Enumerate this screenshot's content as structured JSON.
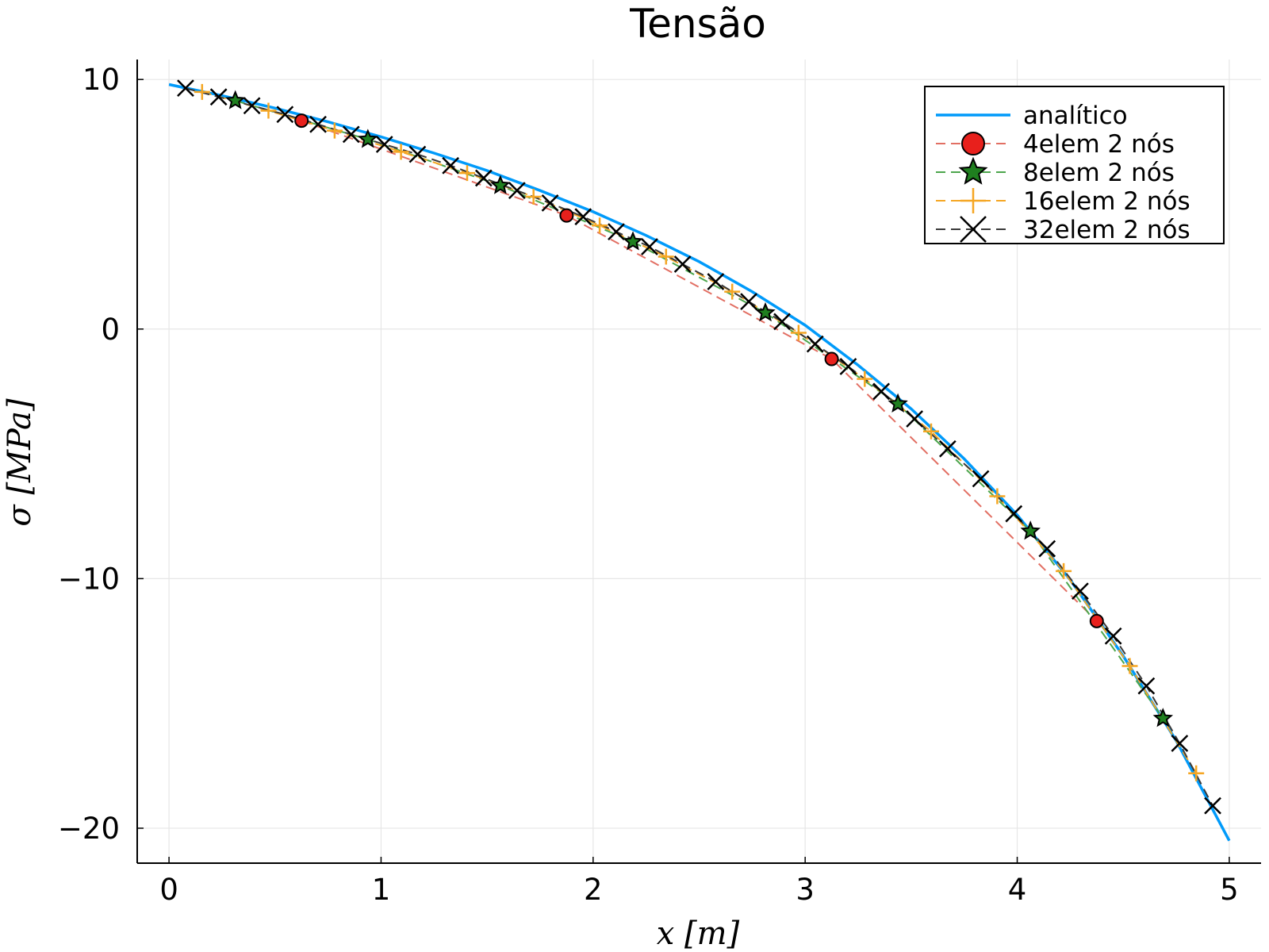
{
  "chart_data": {
    "type": "line",
    "title": "Tensão",
    "xlabel": "x [m]",
    "ylabel": "σ [MPa]",
    "xlim": [
      -0.15,
      5.15
    ],
    "ylim": [
      -21.4,
      10.8
    ],
    "xticks": [
      0,
      1,
      2,
      3,
      4,
      5
    ],
    "xtick_labels": [
      "0",
      "1",
      "2",
      "3",
      "4",
      "5"
    ],
    "yticks": [
      -20,
      -10,
      0,
      10
    ],
    "ytick_labels": [
      "−20",
      "−10",
      "0",
      "10"
    ],
    "grid": true,
    "legend_position": "top-right",
    "series": [
      {
        "name": "analítico",
        "style": "solid",
        "marker": "none",
        "color": "#009AFA",
        "x": [
          0,
          0.25,
          0.5,
          0.75,
          1,
          1.25,
          1.5,
          1.75,
          2,
          2.25,
          2.5,
          2.75,
          3,
          3.25,
          3.5,
          3.75,
          4,
          4.25,
          4.5,
          4.75,
          5
        ],
        "y": [
          9.8,
          9.35,
          8.85,
          8.3,
          7.7,
          7.05,
          6.35,
          5.55,
          4.7,
          3.75,
          2.7,
          1.5,
          0.15,
          -1.45,
          -3.2,
          -5.2,
          -7.45,
          -10.05,
          -13.1,
          -16.5,
          -20.5
        ]
      },
      {
        "name": "4elem 2 nós",
        "style": "dashed",
        "marker": "circle",
        "color": "#E8201C",
        "line_color": "#E26F63",
        "x": [
          0.625,
          1.875,
          3.125,
          4.375
        ],
        "y": [
          8.35,
          4.55,
          -1.2,
          -11.7
        ]
      },
      {
        "name": "8elem 2 nós",
        "style": "dashed",
        "marker": "star",
        "color": "#1F7F1F",
        "line_color": "#4DA64D",
        "x": [
          0.3125,
          0.9375,
          1.5625,
          2.1875,
          2.8125,
          3.4375,
          4.0625,
          4.6875
        ],
        "y": [
          9.15,
          7.6,
          5.75,
          3.5,
          0.65,
          -3.0,
          -8.1,
          -15.6
        ]
      },
      {
        "name": "16elem 2 nós",
        "style": "dashed",
        "marker": "plus",
        "color": "#F5A623",
        "x": [
          0.156,
          0.469,
          0.781,
          1.094,
          1.406,
          1.719,
          2.031,
          2.344,
          2.656,
          2.969,
          3.281,
          3.594,
          3.906,
          4.219,
          4.531,
          4.844
        ],
        "y": [
          9.5,
          8.75,
          7.95,
          7.1,
          6.25,
          5.3,
          4.15,
          2.9,
          1.5,
          -0.15,
          -2.0,
          -4.1,
          -6.7,
          -9.7,
          -13.5,
          -17.8
        ]
      },
      {
        "name": "32elem 2 nós",
        "style": "dashed",
        "marker": "x",
        "color": "#000000",
        "line_color": "#3A3A3A",
        "x": [
          0.078,
          0.234,
          0.391,
          0.547,
          0.703,
          0.859,
          1.016,
          1.172,
          1.328,
          1.484,
          1.641,
          1.797,
          1.953,
          2.109,
          2.266,
          2.422,
          2.578,
          2.734,
          2.891,
          3.047,
          3.203,
          3.359,
          3.516,
          3.672,
          3.828,
          3.984,
          4.141,
          4.297,
          4.453,
          4.609,
          4.766,
          4.922
        ],
        "y": [
          9.65,
          9.3,
          8.95,
          8.6,
          8.2,
          7.8,
          7.4,
          7.0,
          6.55,
          6.05,
          5.55,
          5.05,
          4.5,
          3.9,
          3.3,
          2.6,
          1.9,
          1.1,
          0.3,
          -0.6,
          -1.5,
          -2.5,
          -3.6,
          -4.8,
          -6.0,
          -7.4,
          -8.8,
          -10.5,
          -12.3,
          -14.3,
          -16.6,
          -19.1
        ]
      }
    ]
  }
}
